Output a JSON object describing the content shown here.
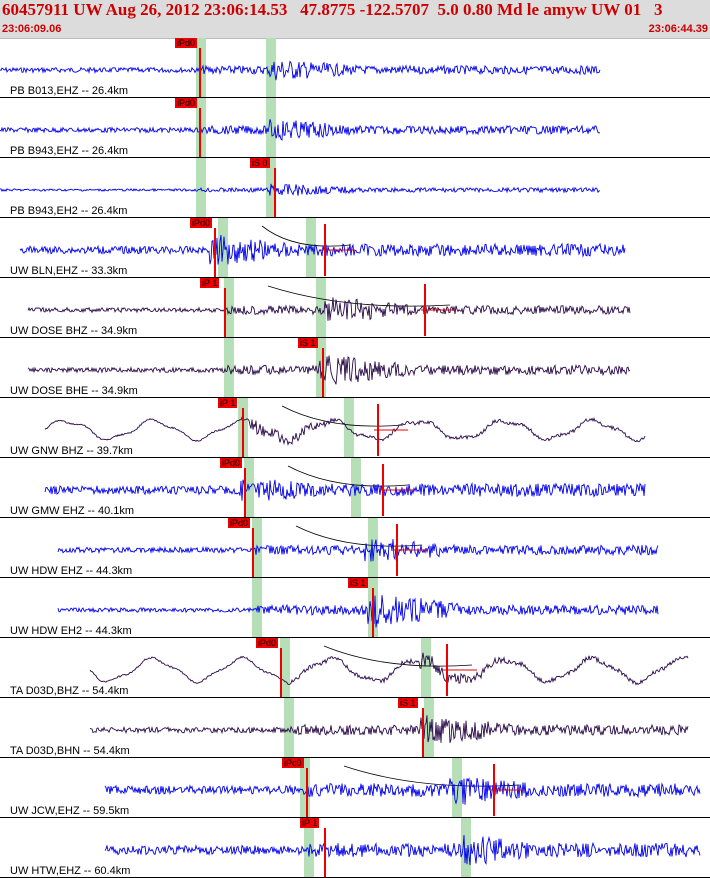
{
  "header": {
    "title": "60457911 UW Aug 26, 2012 23:06:14.53   47.8775 -122.5707  5.0 0.80 Md le amyw UW 01   3",
    "start_time": "23:06:09.06",
    "end_time": "23:06:44.39"
  },
  "colors": {
    "trace_blue": "#0000ee",
    "trace_purple": "#2a0a4a",
    "pick_red": "#ee0000",
    "window_green": "#b7dfb7",
    "header_bg": "#dcdcdc"
  },
  "panels": [
    {
      "label": "PB B013,EHZ -- 26.4km",
      "picks": [
        {
          "text": "iPd0",
          "x": 175
        }
      ],
      "color": "blue",
      "start": 0,
      "end": 600,
      "p_win": 200,
      "s_win": 270,
      "amp": 5,
      "burst": 280,
      "noise": 0.3
    },
    {
      "label": "PB B943,EHZ -- 26.4km",
      "picks": [
        {
          "text": "iPd0",
          "x": 175
        }
      ],
      "color": "blue",
      "start": 0,
      "end": 600,
      "p_win": 200,
      "s_win": 270,
      "amp": 5,
      "burst": 280,
      "noise": 0.3
    },
    {
      "label": "PB B943,EH2 -- 26.4km",
      "picks": [
        {
          "text": "iS 0",
          "x": 250
        }
      ],
      "color": "blue",
      "start": 0,
      "end": 600,
      "p_win": 200,
      "s_win": 270,
      "amp": 3,
      "burst": 280,
      "noise": 0.1
    },
    {
      "label": "UW BLN,EHZ -- 33.3km",
      "picks": [
        {
          "text": "iPd0",
          "x": 190
        }
      ],
      "color": "blue",
      "start": 20,
      "end": 625,
      "p_win": 222,
      "s_win": 310,
      "amp": 7,
      "burst": 220,
      "noise": 0.5,
      "red_tick": 325
    },
    {
      "label": "UW DOSE BHZ -- 34.9km",
      "picks": [
        {
          "text": "iP 1",
          "x": 200
        }
      ],
      "color": "purple",
      "start": 28,
      "end": 630,
      "p_win": 228,
      "s_win": 320,
      "amp": 6,
      "burst": 335,
      "noise": 0.2,
      "red_tick": 425
    },
    {
      "label": "UW DOSE BHE -- 34.9km",
      "picks": [
        {
          "text": "iS 1",
          "x": 298
        }
      ],
      "color": "purple",
      "start": 28,
      "end": 630,
      "p_win": 228,
      "s_win": 320,
      "amp": 7,
      "burst": 330,
      "noise": 0.15
    },
    {
      "label": "UW GNW BHZ -- 39.7km",
      "picks": [
        {
          "text": "iP 1",
          "x": 218
        }
      ],
      "color": "purple",
      "start": 45,
      "end": 645,
      "p_win": 242,
      "s_win": 348,
      "amp": 10,
      "burst": 260,
      "noise": 0.0,
      "wave": 1,
      "red_tick": 378
    },
    {
      "label": "UW GMW EHZ -- 40.1km",
      "picks": [
        {
          "text": "iPd0",
          "x": 220
        }
      ],
      "color": "blue",
      "start": 45,
      "end": 645,
      "p_win": 248,
      "s_win": 355,
      "amp": 6,
      "burst": 250,
      "noise": 0.7,
      "red_tick": 383
    },
    {
      "label": "UW HDW EHZ -- 44.3km",
      "picks": [
        {
          "text": "iPd0",
          "x": 228
        }
      ],
      "color": "blue",
      "start": 58,
      "end": 658,
      "p_win": 256,
      "s_win": 372,
      "amp": 6,
      "burst": 375,
      "noise": 0.3,
      "red_tick": 397
    },
    {
      "label": "UW HDW EH2 -- 44.3km",
      "picks": [
        {
          "text": "iS 1",
          "x": 348
        }
      ],
      "color": "blue",
      "start": 58,
      "end": 658,
      "p_win": 256,
      "s_win": 372,
      "amp": 8,
      "burst": 378,
      "noise": 0.03
    },
    {
      "label": "TA D03D,BHZ -- 54.4km",
      "picks": [
        {
          "text": "iPd0",
          "x": 256
        }
      ],
      "color": "purple",
      "start": 90,
      "end": 688,
      "p_win": 284,
      "s_win": 425,
      "amp": 12,
      "burst": 430,
      "noise": 0.0,
      "wave": 1,
      "red_tick": 447
    },
    {
      "label": "TA D03D,BHN -- 54.4km",
      "picks": [
        {
          "text": "iS 1",
          "x": 398
        }
      ],
      "color": "purple",
      "start": 90,
      "end": 688,
      "p_win": 288,
      "s_win": 428,
      "amp": 7,
      "burst": 430,
      "noise": 0.25
    },
    {
      "label": "UW JCW,EHZ -- 59.5km",
      "picks": [
        {
          "text": "iPc0",
          "x": 282
        }
      ],
      "color": "blue",
      "start": 105,
      "end": 700,
      "p_win": 304,
      "s_win": 456,
      "amp": 7,
      "burst": 460,
      "noise": 0.6,
      "red_tick": 494
    },
    {
      "label": "UW HTW,EHZ -- 60.4km",
      "picks": [
        {
          "text": "iP 1",
          "x": 300
        }
      ],
      "color": "blue",
      "start": 105,
      "end": 700,
      "p_win": 308,
      "s_win": 465,
      "amp": 7,
      "burst": 470,
      "noise": 0.7
    }
  ]
}
